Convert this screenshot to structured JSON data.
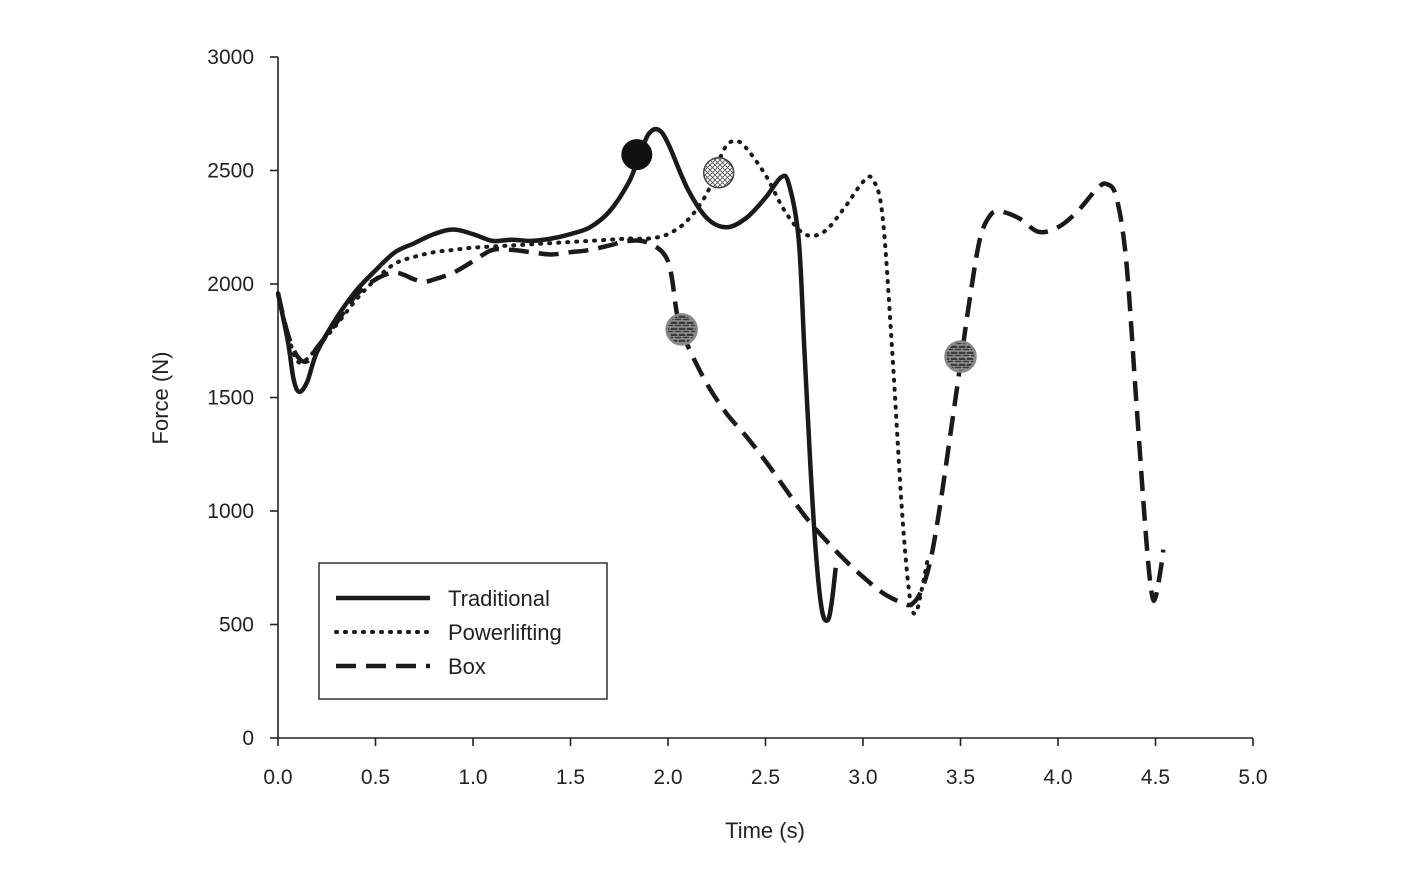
{
  "chart_data": {
    "type": "line",
    "xlabel": "Time (s)",
    "ylabel": "Force (N)",
    "xlim": [
      0,
      5
    ],
    "ylim": [
      0,
      3000
    ],
    "x_ticks": [
      "0.0",
      "0.5",
      "1.0",
      "1.5",
      "2.0",
      "2.5",
      "3.0",
      "3.5",
      "4.0",
      "4.5",
      "5.0"
    ],
    "y_ticks": [
      "0",
      "500",
      "1000",
      "1500",
      "2000",
      "2500",
      "3000"
    ],
    "grid": false,
    "legend_position": "bottom-left",
    "series": [
      {
        "name": "Traditional",
        "style": "solid",
        "color": "#1a1a1a",
        "points": [
          [
            0.0,
            1960
          ],
          [
            0.05,
            1750
          ],
          [
            0.08,
            1580
          ],
          [
            0.11,
            1525
          ],
          [
            0.15,
            1570
          ],
          [
            0.2,
            1700
          ],
          [
            0.3,
            1850
          ],
          [
            0.4,
            1970
          ],
          [
            0.5,
            2060
          ],
          [
            0.6,
            2140
          ],
          [
            0.7,
            2180
          ],
          [
            0.8,
            2220
          ],
          [
            0.9,
            2240
          ],
          [
            1.0,
            2220
          ],
          [
            1.1,
            2190
          ],
          [
            1.2,
            2195
          ],
          [
            1.3,
            2190
          ],
          [
            1.4,
            2200
          ],
          [
            1.5,
            2220
          ],
          [
            1.6,
            2250
          ],
          [
            1.7,
            2320
          ],
          [
            1.8,
            2450
          ],
          [
            1.85,
            2560
          ],
          [
            1.9,
            2660
          ],
          [
            1.95,
            2680
          ],
          [
            2.0,
            2620
          ],
          [
            2.1,
            2420
          ],
          [
            2.2,
            2290
          ],
          [
            2.3,
            2250
          ],
          [
            2.4,
            2290
          ],
          [
            2.5,
            2380
          ],
          [
            2.58,
            2470
          ],
          [
            2.62,
            2440
          ],
          [
            2.67,
            2200
          ],
          [
            2.7,
            1700
          ],
          [
            2.73,
            1200
          ],
          [
            2.76,
            800
          ],
          [
            2.79,
            560
          ],
          [
            2.82,
            520
          ],
          [
            2.84,
            600
          ],
          [
            2.86,
            750
          ]
        ],
        "marker": {
          "x": 1.84,
          "y": 2570,
          "style": "solid-circle"
        }
      },
      {
        "name": "Powerlifting",
        "style": "dotted",
        "color": "#1a1a1a",
        "points": [
          [
            0.0,
            1960
          ],
          [
            0.05,
            1780
          ],
          [
            0.1,
            1660
          ],
          [
            0.15,
            1670
          ],
          [
            0.2,
            1720
          ],
          [
            0.3,
            1820
          ],
          [
            0.4,
            1930
          ],
          [
            0.5,
            2020
          ],
          [
            0.6,
            2090
          ],
          [
            0.7,
            2120
          ],
          [
            0.8,
            2140
          ],
          [
            0.9,
            2150
          ],
          [
            1.0,
            2160
          ],
          [
            1.2,
            2170
          ],
          [
            1.4,
            2180
          ],
          [
            1.6,
            2190
          ],
          [
            1.8,
            2200
          ],
          [
            1.9,
            2200
          ],
          [
            2.0,
            2220
          ],
          [
            2.1,
            2280
          ],
          [
            2.2,
            2400
          ],
          [
            2.25,
            2520
          ],
          [
            2.3,
            2610
          ],
          [
            2.35,
            2630
          ],
          [
            2.4,
            2600
          ],
          [
            2.5,
            2480
          ],
          [
            2.6,
            2320
          ],
          [
            2.7,
            2220
          ],
          [
            2.8,
            2230
          ],
          [
            2.9,
            2330
          ],
          [
            3.0,
            2450
          ],
          [
            3.05,
            2460
          ],
          [
            3.1,
            2300
          ],
          [
            3.15,
            1700
          ],
          [
            3.2,
            1000
          ],
          [
            3.24,
            620
          ],
          [
            3.27,
            550
          ],
          [
            3.3,
            650
          ],
          [
            3.33,
            780
          ]
        ],
        "marker": {
          "x": 2.26,
          "y": 2490,
          "style": "crosshatch-circle"
        }
      },
      {
        "name": "Box",
        "style": "dashed",
        "color": "#1a1a1a",
        "points": [
          [
            0.0,
            1960
          ],
          [
            0.05,
            1780
          ],
          [
            0.1,
            1680
          ],
          [
            0.15,
            1660
          ],
          [
            0.2,
            1720
          ],
          [
            0.3,
            1830
          ],
          [
            0.4,
            1950
          ],
          [
            0.5,
            2020
          ],
          [
            0.6,
            2050
          ],
          [
            0.7,
            2020
          ],
          [
            0.75,
            2010
          ],
          [
            0.8,
            2020
          ],
          [
            0.9,
            2050
          ],
          [
            1.0,
            2100
          ],
          [
            1.1,
            2150
          ],
          [
            1.2,
            2150
          ],
          [
            1.3,
            2140
          ],
          [
            1.4,
            2130
          ],
          [
            1.5,
            2140
          ],
          [
            1.6,
            2150
          ],
          [
            1.7,
            2170
          ],
          [
            1.8,
            2190
          ],
          [
            1.9,
            2180
          ],
          [
            2.0,
            2100
          ],
          [
            2.05,
            1850
          ],
          [
            2.1,
            1730
          ],
          [
            2.2,
            1560
          ],
          [
            2.3,
            1430
          ],
          [
            2.4,
            1330
          ],
          [
            2.5,
            1220
          ],
          [
            2.6,
            1100
          ],
          [
            2.7,
            980
          ],
          [
            2.8,
            880
          ],
          [
            2.9,
            790
          ],
          [
            3.0,
            710
          ],
          [
            3.1,
            640
          ],
          [
            3.2,
            595
          ],
          [
            3.25,
            590
          ],
          [
            3.3,
            650
          ],
          [
            3.35,
            800
          ],
          [
            3.4,
            1050
          ],
          [
            3.45,
            1350
          ],
          [
            3.5,
            1650
          ],
          [
            3.55,
            1950
          ],
          [
            3.6,
            2200
          ],
          [
            3.65,
            2300
          ],
          [
            3.7,
            2320
          ],
          [
            3.8,
            2290
          ],
          [
            3.9,
            2230
          ],
          [
            4.0,
            2250
          ],
          [
            4.1,
            2320
          ],
          [
            4.2,
            2420
          ],
          [
            4.25,
            2440
          ],
          [
            4.3,
            2380
          ],
          [
            4.35,
            2100
          ],
          [
            4.4,
            1500
          ],
          [
            4.45,
            900
          ],
          [
            4.48,
            640
          ],
          [
            4.5,
            620
          ],
          [
            4.53,
            760
          ],
          [
            4.54,
            830
          ]
        ],
        "markers": [
          {
            "x": 2.07,
            "y": 1800,
            "style": "brick-circle"
          },
          {
            "x": 3.5,
            "y": 1680,
            "style": "brick-circle"
          }
        ]
      }
    ]
  }
}
